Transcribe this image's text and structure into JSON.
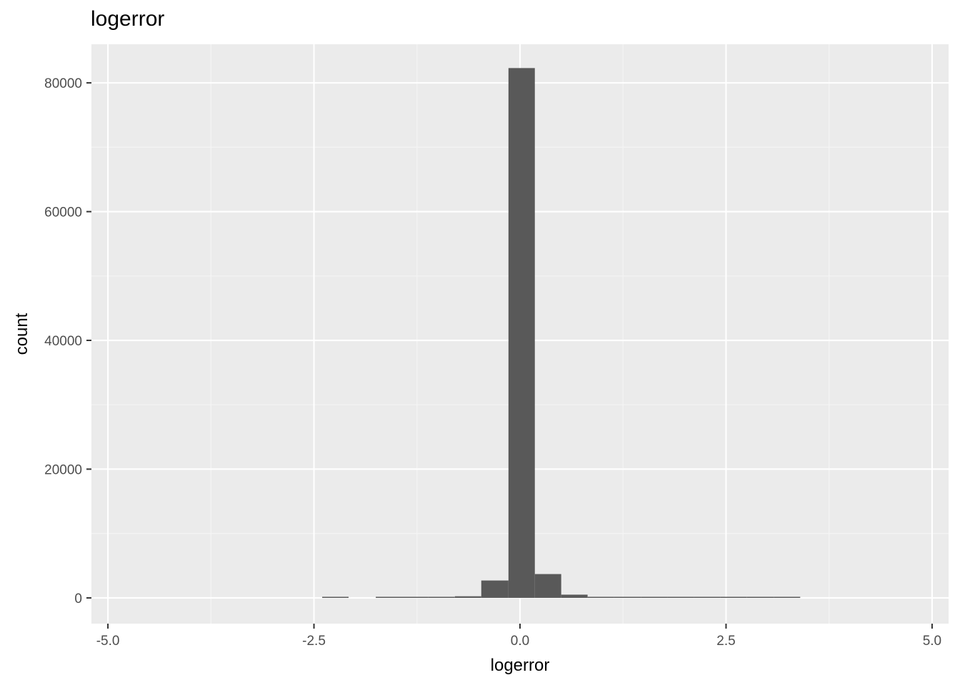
{
  "chart_data": {
    "type": "bar",
    "title": "logerror",
    "xlabel": "logerror",
    "ylabel": "count",
    "xlim": [
      -5.2,
      5.2
    ],
    "ylim": [
      -4000,
      86000
    ],
    "x_ticks": [
      -5.0,
      -2.5,
      0.0,
      2.5,
      5.0
    ],
    "x_tick_labels": [
      "-5.0",
      "-2.5",
      "0.0",
      "2.5",
      "5.0"
    ],
    "y_ticks": [
      0,
      20000,
      40000,
      60000,
      80000
    ],
    "y_tick_labels": [
      "0",
      "20000",
      "40000",
      "60000",
      "80000"
    ],
    "grid": true,
    "bin_width": 0.322,
    "bins": [
      {
        "x0": -4.65,
        "x1": -4.33,
        "count": 0
      },
      {
        "x0": -4.33,
        "x1": -4.01,
        "count": 0
      },
      {
        "x0": -4.01,
        "x1": -3.69,
        "count": 0
      },
      {
        "x0": -3.69,
        "x1": -3.36,
        "count": 0
      },
      {
        "x0": -3.36,
        "x1": -3.04,
        "count": 0
      },
      {
        "x0": -3.04,
        "x1": -2.72,
        "count": 0
      },
      {
        "x0": -2.72,
        "x1": -2.4,
        "count": 0
      },
      {
        "x0": -2.4,
        "x1": -2.08,
        "count": 12
      },
      {
        "x0": -2.08,
        "x1": -1.75,
        "count": 0
      },
      {
        "x0": -1.75,
        "x1": -1.43,
        "count": 20
      },
      {
        "x0": -1.43,
        "x1": -1.11,
        "count": 40
      },
      {
        "x0": -1.11,
        "x1": -0.79,
        "count": 80
      },
      {
        "x0": -0.79,
        "x1": -0.47,
        "count": 250
      },
      {
        "x0": -0.47,
        "x1": -0.14,
        "count": 2700
      },
      {
        "x0": -0.14,
        "x1": 0.18,
        "count": 82300
      },
      {
        "x0": 0.18,
        "x1": 0.5,
        "count": 3700
      },
      {
        "x0": 0.5,
        "x1": 0.82,
        "count": 500
      },
      {
        "x0": 0.82,
        "x1": 1.14,
        "count": 150
      },
      {
        "x0": 1.14,
        "x1": 1.47,
        "count": 60
      },
      {
        "x0": 1.47,
        "x1": 1.79,
        "count": 40
      },
      {
        "x0": 1.79,
        "x1": 2.11,
        "count": 30
      },
      {
        "x0": 2.11,
        "x1": 2.43,
        "count": 25
      },
      {
        "x0": 2.43,
        "x1": 2.75,
        "count": 20
      },
      {
        "x0": 2.75,
        "x1": 3.08,
        "count": 15
      },
      {
        "x0": 3.08,
        "x1": 3.4,
        "count": 12
      }
    ],
    "colors": {
      "panel_background": "#ebebeb",
      "grid_major": "#ffffff",
      "grid_minor": "#f5f5f5",
      "bar_fill": "#595959",
      "tick_text": "#4d4d4d",
      "tick_mark": "#333333"
    }
  }
}
